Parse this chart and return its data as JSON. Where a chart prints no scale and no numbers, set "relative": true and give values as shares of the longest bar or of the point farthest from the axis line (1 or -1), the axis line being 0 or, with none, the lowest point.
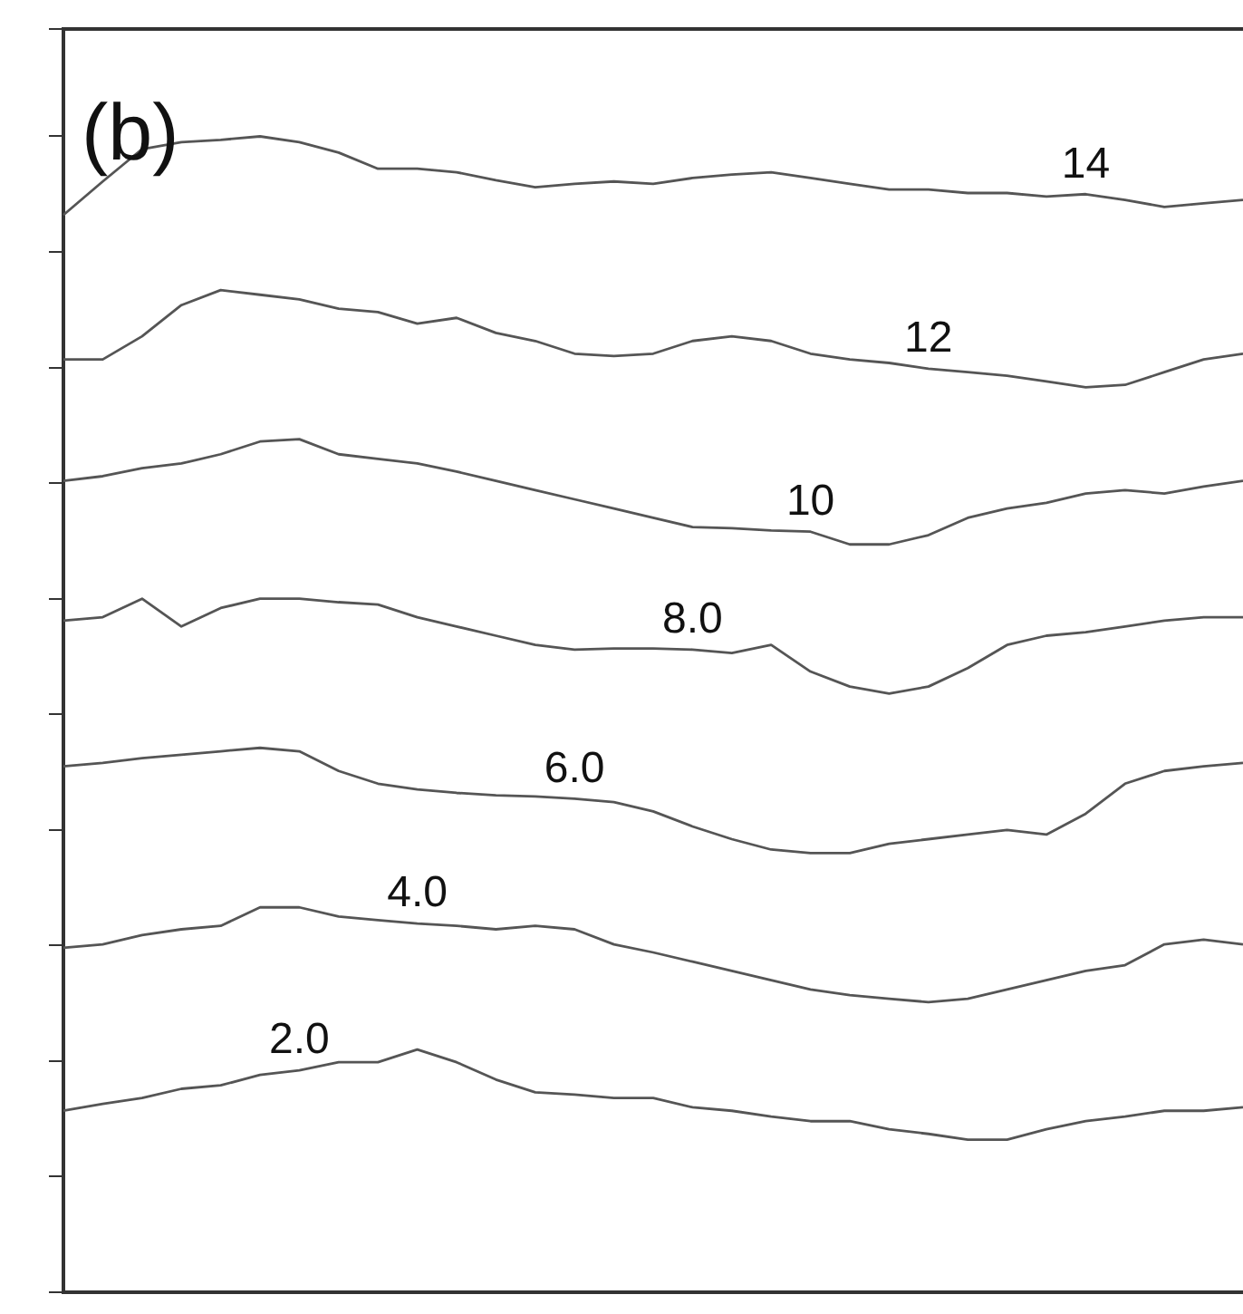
{
  "chart_data": {
    "type": "line",
    "title": "(b)",
    "relative": true,
    "marker": "none",
    "categories": [
      null,
      null,
      null,
      null,
      null,
      null,
      null,
      null,
      null,
      null,
      null,
      null,
      null,
      null,
      null,
      null,
      null,
      null,
      null,
      null,
      null,
      null,
      null,
      null,
      null,
      null,
      null,
      null,
      null,
      null,
      null
    ],
    "series": [
      {
        "name": "14",
        "color": "#555555",
        "values": [
          0.932,
          0.961,
          0.989,
          0.995,
          0.997,
          1,
          0.995,
          0.986,
          0.972,
          0.972,
          0.969,
          0.962,
          0.956,
          0.959,
          0.961,
          0.959,
          0.964,
          0.967,
          0.969,
          0.964,
          0.959,
          0.954,
          0.954,
          0.951,
          0.951,
          0.948,
          0.95,
          0.945,
          0.939,
          0.942,
          0.945
        ]
      },
      {
        "name": "12",
        "color": "#555555",
        "values": [
          0.807,
          0.807,
          0.827,
          0.854,
          0.867,
          0.863,
          0.859,
          0.851,
          0.848,
          0.838,
          0.843,
          0.83,
          0.823,
          0.812,
          0.81,
          0.812,
          0.823,
          0.827,
          0.823,
          0.812,
          0.807,
          0.804,
          0.799,
          0.796,
          0.793,
          0.788,
          0.783,
          0.785,
          0.796,
          0.807,
          0.812
        ]
      },
      {
        "name": "10",
        "color": "#555555",
        "values": [
          0.702,
          0.706,
          0.713,
          0.717,
          0.725,
          0.736,
          0.738,
          0.725,
          0.721,
          0.717,
          0.71,
          0.702,
          0.694,
          0.686,
          0.678,
          0.67,
          0.662,
          0.661,
          0.659,
          0.658,
          0.647,
          0.647,
          0.655,
          0.67,
          0.678,
          0.683,
          0.691,
          0.694,
          0.691,
          0.697,
          0.702
        ]
      },
      {
        "name": "8.0",
        "color": "#555555",
        "values": [
          0.581,
          0.584,
          0.6,
          0.576,
          0.592,
          0.6,
          0.6,
          0.597,
          0.595,
          0.584,
          0.576,
          0.568,
          0.56,
          0.556,
          0.557,
          0.557,
          0.556,
          0.553,
          0.56,
          0.537,
          0.524,
          0.518,
          0.524,
          0.54,
          0.56,
          0.568,
          0.571,
          0.576,
          0.581,
          0.584,
          0.584
        ]
      },
      {
        "name": "6.0",
        "color": "#555555",
        "values": [
          0.455,
          0.458,
          0.462,
          0.465,
          0.468,
          0.471,
          0.468,
          0.451,
          0.44,
          0.435,
          0.432,
          0.43,
          0.429,
          0.427,
          0.424,
          0.416,
          0.403,
          0.392,
          0.383,
          0.38,
          0.38,
          0.388,
          0.392,
          0.396,
          0.4,
          0.396,
          0.414,
          0.44,
          0.451,
          0.455,
          0.458
        ]
      },
      {
        "name": "4.0",
        "color": "#555555",
        "values": [
          0.298,
          0.301,
          0.309,
          0.314,
          0.317,
          0.333,
          0.333,
          0.325,
          0.322,
          0.319,
          0.317,
          0.314,
          0.317,
          0.314,
          0.301,
          0.294,
          0.286,
          0.278,
          0.27,
          0.262,
          0.257,
          0.254,
          0.251,
          0.254,
          0.262,
          0.27,
          0.278,
          0.283,
          0.301,
          0.305,
          0.301
        ]
      },
      {
        "name": "2.0",
        "color": "#555555",
        "values": [
          0.157,
          0.163,
          0.168,
          0.176,
          0.179,
          0.188,
          0.192,
          0.199,
          0.199,
          0.21,
          0.199,
          0.184,
          0.173,
          0.171,
          0.168,
          0.168,
          0.16,
          0.157,
          0.152,
          0.148,
          0.148,
          0.141,
          0.137,
          0.132,
          0.132,
          0.141,
          0.148,
          0.152,
          0.157,
          0.157,
          0.16
        ]
      }
    ]
  }
}
